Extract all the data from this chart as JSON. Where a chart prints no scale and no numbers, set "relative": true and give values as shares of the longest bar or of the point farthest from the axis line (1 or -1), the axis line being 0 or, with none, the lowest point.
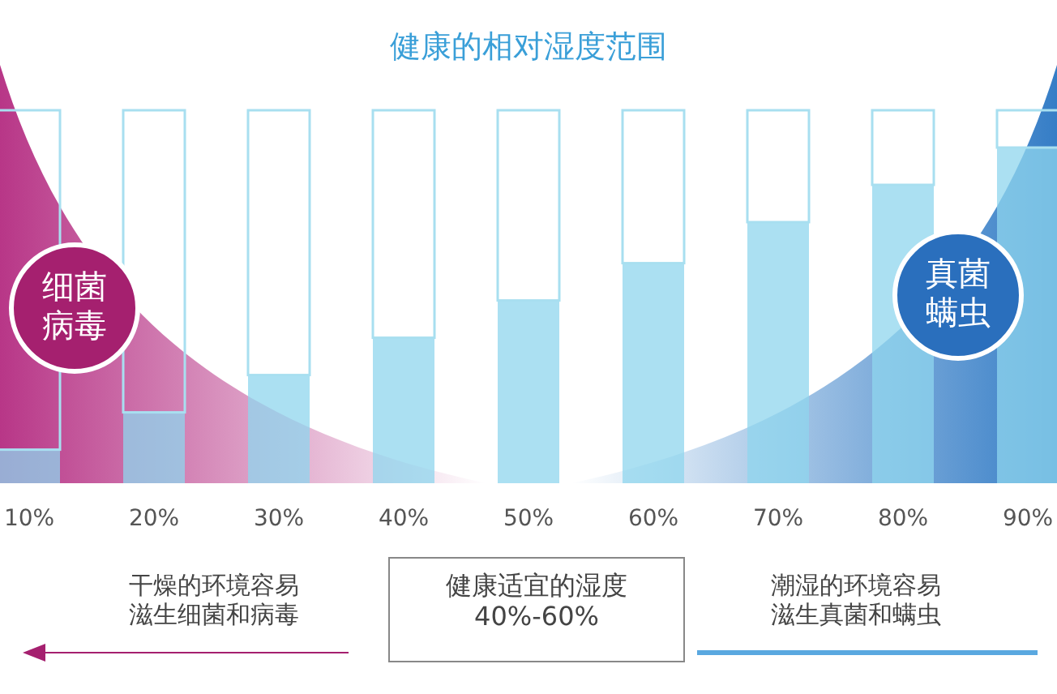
{
  "chart_data": {
    "type": "bar",
    "title": "健康的相对湿度范围",
    "categories": [
      "10%",
      "20%",
      "30%",
      "40%",
      "50%",
      "60%",
      "70%",
      "80%",
      "90%"
    ],
    "relative": true,
    "stacked": true,
    "series": [
      {
        "color": "#8fd6ee",
        "values": [
          0.09,
          0.19,
          0.29,
          0.39,
          0.49,
          0.59,
          0.7,
          0.8,
          0.9
        ]
      },
      {
        "color": "#a8dff0",
        "values": [
          0.91,
          0.81,
          0.71,
          0.61,
          0.51,
          0.41,
          0.3,
          0.2,
          0.1
        ]
      }
    ],
    "annotations": [
      "细菌病毒",
      "真菌螨虫",
      "干燥的环境容易滋生细菌和病毒",
      "健康适宜的湿度\n40%-60%",
      "潮湿的环境容易滋生真菌和螨虫"
    ]
  }
}
